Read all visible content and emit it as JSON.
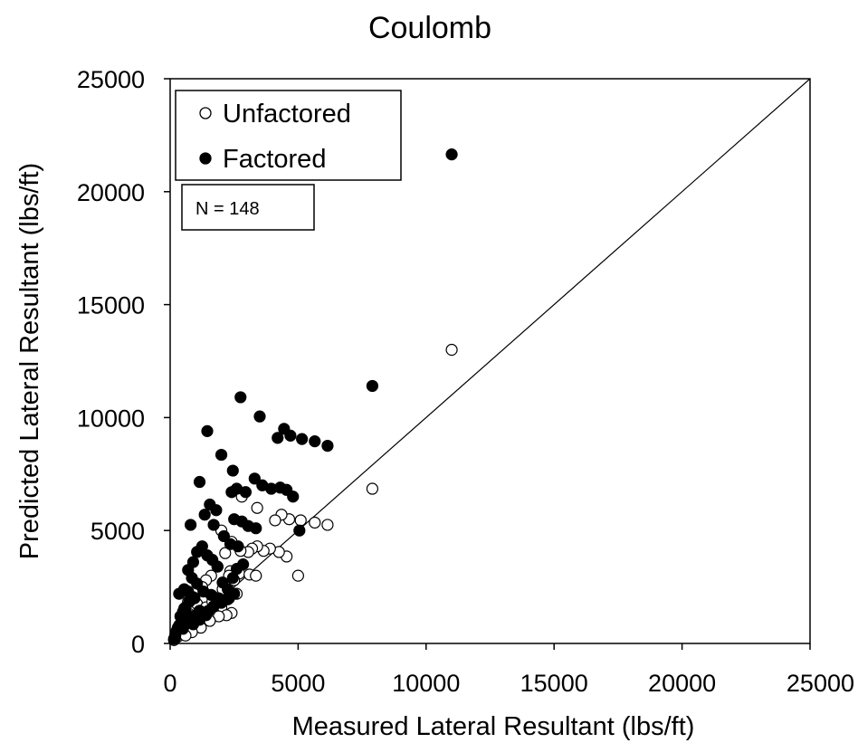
{
  "chart_data": {
    "type": "scatter",
    "title": "Coulomb",
    "xlabel": "Measured Lateral Resultant (lbs/ft)",
    "ylabel": "Predicted Lateral Resultant (lbs/ft)",
    "xlim": [
      0,
      25000
    ],
    "ylim": [
      0,
      25000
    ],
    "xticks": [
      0,
      5000,
      10000,
      15000,
      20000,
      25000
    ],
    "yticks": [
      0,
      5000,
      10000,
      15000,
      20000,
      25000
    ],
    "grid": false,
    "legend_position": "top-left",
    "reference_line": {
      "x": [
        0,
        25000
      ],
      "y": [
        0,
        25000
      ]
    },
    "annotation": "N = 148",
    "series": [
      {
        "name": "Unfactored",
        "marker": "open-circle",
        "color": "#000000",
        "points": [
          [
            11000,
            13000
          ],
          [
            7900,
            6850
          ],
          [
            6150,
            5250
          ],
          [
            5650,
            5350
          ],
          [
            5100,
            5450
          ],
          [
            4650,
            5500
          ],
          [
            4350,
            5700
          ],
          [
            4100,
            5450
          ],
          [
            5000,
            3000
          ],
          [
            4550,
            3850
          ],
          [
            4250,
            4050
          ],
          [
            3900,
            4200
          ],
          [
            3650,
            4100
          ],
          [
            3400,
            4300
          ],
          [
            3200,
            4200
          ],
          [
            3050,
            4050
          ],
          [
            2750,
            4100
          ],
          [
            2400,
            4500
          ],
          [
            3400,
            6000
          ],
          [
            2800,
            6500
          ],
          [
            2000,
            5000
          ],
          [
            2150,
            4000
          ],
          [
            2350,
            3200
          ],
          [
            2700,
            3100
          ],
          [
            3100,
            3050
          ],
          [
            3350,
            3000
          ],
          [
            1850,
            3400
          ],
          [
            1600,
            3000
          ],
          [
            1400,
            2800
          ],
          [
            1250,
            2500
          ],
          [
            1650,
            2100
          ],
          [
            1900,
            2000
          ],
          [
            2300,
            2000
          ],
          [
            2600,
            2200
          ],
          [
            2000,
            1600
          ],
          [
            1700,
            1350
          ],
          [
            1500,
            1250
          ],
          [
            2400,
            1350
          ],
          [
            2200,
            1250
          ],
          [
            1900,
            1200
          ],
          [
            1300,
            1050
          ],
          [
            1150,
            850
          ],
          [
            950,
            700
          ],
          [
            800,
            900
          ],
          [
            650,
            750
          ],
          [
            500,
            500
          ],
          [
            400,
            400
          ],
          [
            300,
            300
          ],
          [
            200,
            250
          ],
          [
            150,
            150
          ],
          [
            350,
            600
          ],
          [
            600,
            1150
          ],
          [
            850,
            1500
          ],
          [
            1050,
            1750
          ],
          [
            900,
            2050
          ],
          [
            700,
            1850
          ],
          [
            550,
            1550
          ],
          [
            450,
            1250
          ],
          [
            750,
            1300
          ],
          [
            950,
            1150
          ],
          [
            1150,
            1400
          ],
          [
            1400,
            1600
          ],
          [
            1650,
            1850
          ],
          [
            2050,
            2400
          ],
          [
            2500,
            2800
          ],
          [
            2300,
            3000
          ],
          [
            1550,
            1000
          ],
          [
            1200,
            700
          ],
          [
            850,
            500
          ],
          [
            600,
            350
          ]
        ]
      },
      {
        "name": "Factored",
        "marker": "filled-circle",
        "color": "#000000",
        "points": [
          [
            11000,
            21650
          ],
          [
            7900,
            11400
          ],
          [
            6150,
            8750
          ],
          [
            5650,
            8950
          ],
          [
            5150,
            9050
          ],
          [
            4700,
            9200
          ],
          [
            4450,
            9500
          ],
          [
            4200,
            9100
          ],
          [
            2750,
            10900
          ],
          [
            3500,
            10050
          ],
          [
            1450,
            9400
          ],
          [
            2000,
            8350
          ],
          [
            2450,
            7650
          ],
          [
            1150,
            7150
          ],
          [
            2600,
            6850
          ],
          [
            2950,
            6700
          ],
          [
            3300,
            7300
          ],
          [
            3600,
            7000
          ],
          [
            3950,
            6850
          ],
          [
            4300,
            6900
          ],
          [
            4550,
            6800
          ],
          [
            4800,
            6500
          ],
          [
            5050,
            5000
          ],
          [
            3350,
            5100
          ],
          [
            3050,
            5200
          ],
          [
            2800,
            5400
          ],
          [
            2500,
            5500
          ],
          [
            2400,
            6700
          ],
          [
            1800,
            5900
          ],
          [
            1550,
            6150
          ],
          [
            1350,
            5700
          ],
          [
            1700,
            5250
          ],
          [
            2100,
            4750
          ],
          [
            2350,
            4400
          ],
          [
            2650,
            4300
          ],
          [
            2850,
            3500
          ],
          [
            2600,
            3300
          ],
          [
            2450,
            2900
          ],
          [
            2250,
            2400
          ],
          [
            2500,
            2200
          ],
          [
            2050,
            2700
          ],
          [
            1850,
            3400
          ],
          [
            1650,
            3700
          ],
          [
            1450,
            3900
          ],
          [
            1250,
            4300
          ],
          [
            1050,
            4050
          ],
          [
            900,
            3600
          ],
          [
            700,
            3250
          ],
          [
            850,
            2900
          ],
          [
            1050,
            2650
          ],
          [
            1300,
            2300
          ],
          [
            1600,
            2150
          ],
          [
            1900,
            2000
          ],
          [
            800,
            5250
          ],
          [
            950,
            2000
          ],
          [
            750,
            1850
          ],
          [
            600,
            1600
          ],
          [
            500,
            1400
          ],
          [
            400,
            1200
          ],
          [
            650,
            1300
          ],
          [
            850,
            1200
          ],
          [
            1150,
            1450
          ],
          [
            1400,
            1250
          ],
          [
            700,
            2300
          ],
          [
            550,
            2400
          ],
          [
            450,
            1000
          ],
          [
            350,
            800
          ],
          [
            250,
            550
          ],
          [
            200,
            350
          ],
          [
            150,
            200
          ],
          [
            300,
            700
          ],
          [
            500,
            650
          ],
          [
            650,
            900
          ],
          [
            900,
            850
          ],
          [
            1150,
            1050
          ],
          [
            1500,
            1450
          ],
          [
            1700,
            1650
          ],
          [
            2000,
            1800
          ],
          [
            2250,
            1950
          ],
          [
            350,
            2200
          ]
        ]
      }
    ]
  }
}
